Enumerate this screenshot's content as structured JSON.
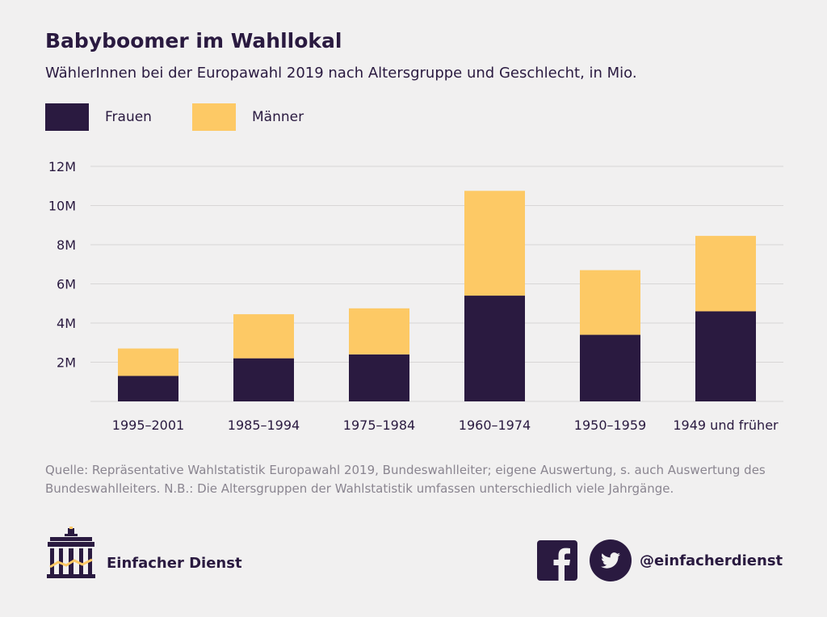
{
  "header": {
    "title": "Babyboomer im Wahllokal",
    "subtitle": "WählerInnen bei der Europawahl 2019 nach Altersgruppe und Geschlecht, in Mio."
  },
  "legend": {
    "women_label": "Frauen",
    "men_label": "Männer",
    "women_color": "#2a1a40",
    "men_color": "#fdc965"
  },
  "chart_data": {
    "type": "bar",
    "stacked": true,
    "categories": [
      "1995–2001",
      "1985–1994",
      "1975–1984",
      "1960–1974",
      "1950–1959",
      "1949 und früher"
    ],
    "series": [
      {
        "name": "Frauen",
        "color": "#2a1a40",
        "values": [
          1.3,
          2.2,
          2.4,
          5.4,
          3.4,
          4.6
        ]
      },
      {
        "name": "Männer",
        "color": "#fdc965",
        "values": [
          1.4,
          2.25,
          2.35,
          5.35,
          3.3,
          3.85
        ]
      }
    ],
    "yticks": [
      {
        "value": 2,
        "label": "2M"
      },
      {
        "value": 4,
        "label": "4M"
      },
      {
        "value": 6,
        "label": "6M"
      },
      {
        "value": 8,
        "label": "8M"
      },
      {
        "value": 10,
        "label": "10M"
      },
      {
        "value": 12,
        "label": "12M"
      }
    ],
    "ylim": [
      0,
      12
    ],
    "grid": true,
    "legend_position": "top-left"
  },
  "source": {
    "text": "Quelle: Repräsentative Wahlstatistik Europawahl 2019, Bundeswahlleiter; eigene Auswertung, s. auch Auswertung des Bundeswahlleiters. N.B.: Die Altersgruppen der Wahlstatistik umfassen unterschiedlich viele Jahrgänge."
  },
  "footer": {
    "brand": "Einfacher Dienst",
    "handle": "@einfacherdienst",
    "logo_icon": "brandenburg-gate-icon",
    "facebook_icon": "facebook-icon",
    "twitter_icon": "twitter-icon"
  }
}
